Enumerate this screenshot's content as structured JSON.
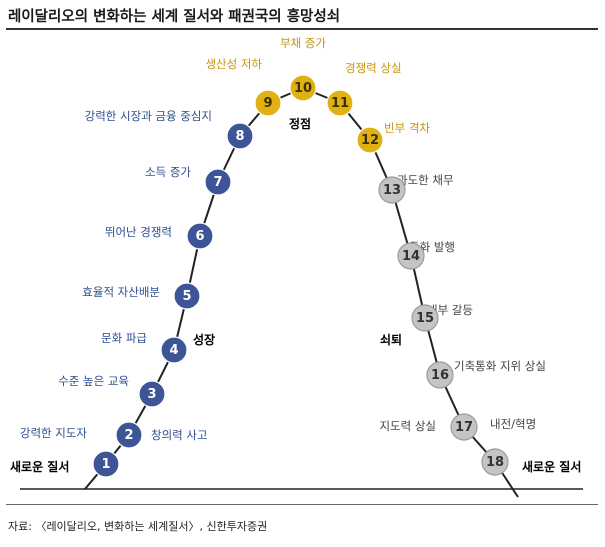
{
  "title": "레이달리오의 변화하는 세계 질서와 패권국의 흥망성쇠",
  "source": "자료: 〈레이달리오, 변화하는 세계질서〉, 신한투자증권",
  "colors": {
    "rise_fill": "#3d5596",
    "peak_fill": "#e0b113",
    "decline_fill": "#c4c4c4",
    "rise_text": "#ffffff",
    "peak_text": "#3a3000",
    "decline_text": "#333333"
  },
  "phases": {
    "start": "새로운 질서",
    "growth": "성장",
    "peak": "정점",
    "decline": "쇠퇴",
    "end": "새로운 질서"
  },
  "stages": [
    {
      "num": "1",
      "label": "강력한 지도자",
      "group": "rise"
    },
    {
      "num": "2",
      "label": "창의력 사고",
      "group": "rise"
    },
    {
      "num": "3",
      "label": "수준 높은 교육",
      "group": "rise"
    },
    {
      "num": "4",
      "label": "문화 파급",
      "group": "rise"
    },
    {
      "num": "5",
      "label": "효율적 자산배분",
      "group": "rise"
    },
    {
      "num": "6",
      "label": "뛰어난 경쟁력",
      "group": "rise"
    },
    {
      "num": "7",
      "label": "소득 증가",
      "group": "rise"
    },
    {
      "num": "8",
      "label": "강력한 시장과 금융 중심지",
      "group": "rise"
    },
    {
      "num": "9",
      "label": "생산성 저하",
      "group": "peak"
    },
    {
      "num": "10",
      "label": "부채 증가",
      "group": "peak"
    },
    {
      "num": "11",
      "label": "경쟁력 상실",
      "group": "peak"
    },
    {
      "num": "12",
      "label": "빈부 격차",
      "group": "peak"
    },
    {
      "num": "13",
      "label": "과도한 채무",
      "group": "decline"
    },
    {
      "num": "14",
      "label": "통화 발행",
      "group": "decline"
    },
    {
      "num": "15",
      "label": "내부 갈등",
      "group": "decline"
    },
    {
      "num": "16",
      "label": "기축통화 지위 상실",
      "group": "decline"
    },
    {
      "num": "17",
      "label": "지도력 상실",
      "group": "decline"
    },
    {
      "num": "18",
      "label": "내전/혁명",
      "group": "decline"
    }
  ]
}
